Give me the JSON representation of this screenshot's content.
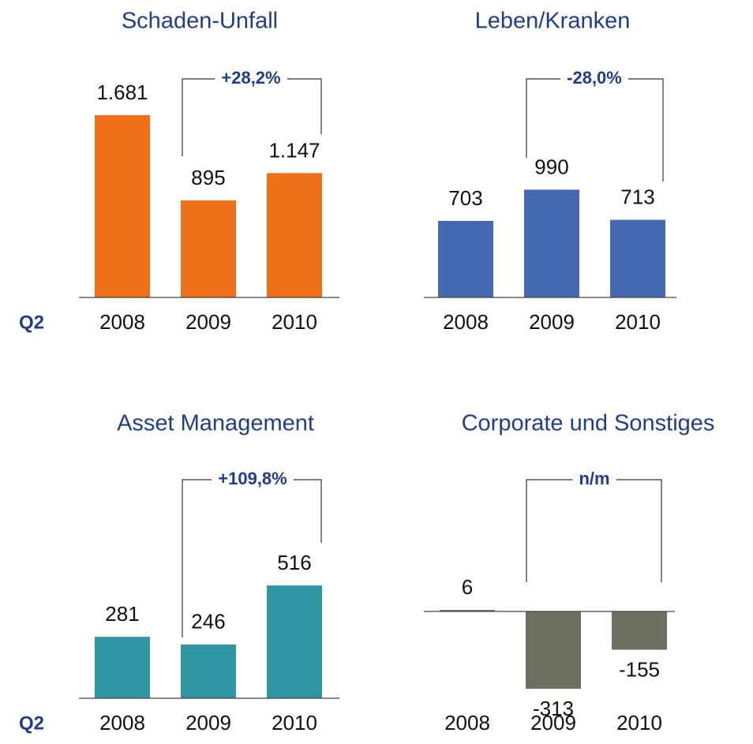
{
  "chart_data": [
    {
      "type": "bar",
      "title": "Schaden-Unfall",
      "period_label": "Q2",
      "categories": [
        "2008",
        "2009",
        "2010"
      ],
      "values": [
        1681,
        895,
        1147
      ],
      "value_labels": [
        "1.681",
        "895",
        "1.147"
      ],
      "color": "#f07019",
      "annotation": "+28,2%"
    },
    {
      "type": "bar",
      "title": "Leben/Kranken",
      "categories": [
        "2008",
        "2009",
        "2010"
      ],
      "values": [
        703,
        990,
        713
      ],
      "color": "#4469b0",
      "annotation": "-28,0%"
    },
    {
      "type": "bar",
      "title": "Asset Management",
      "period_label": "Q2",
      "categories": [
        "2008",
        "2009",
        "2010"
      ],
      "values": [
        281,
        246,
        516
      ],
      "color": "#2e97a3",
      "annotation": "+109,8%"
    },
    {
      "type": "bar",
      "title": "Corporate und Sonstiges",
      "categories": [
        "2008",
        "2009",
        "2010"
      ],
      "values": [
        6,
        -313,
        -155
      ],
      "color": "#6e6f5e",
      "annotation": "n/m"
    }
  ]
}
